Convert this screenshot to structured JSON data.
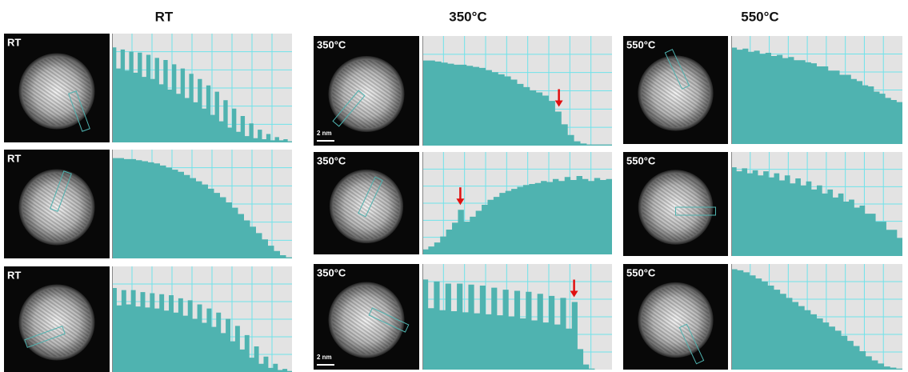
{
  "columns": [
    {
      "title": "RT",
      "rows": [
        {
          "label": "RT",
          "profile": [
            90,
            70,
            88,
            68,
            86,
            66,
            85,
            62,
            83,
            60,
            80,
            55,
            78,
            50,
            74,
            46,
            70,
            42,
            65,
            38,
            60,
            32,
            54,
            26,
            48,
            20,
            40,
            14,
            32,
            10,
            25,
            6,
            18,
            4,
            12,
            3,
            8,
            2,
            5,
            2,
            3,
            1
          ]
        },
        {
          "label": "RT",
          "profile": [
            95,
            95,
            94,
            94,
            93,
            92,
            91,
            90,
            88,
            86,
            84,
            82,
            79,
            76,
            73,
            70,
            66,
            62,
            58,
            53,
            48,
            42,
            36,
            30,
            24,
            18,
            12,
            7,
            3,
            1
          ]
        },
        {
          "label": "RT",
          "profile": [
            82,
            65,
            80,
            66,
            80,
            64,
            78,
            63,
            77,
            62,
            76,
            60,
            75,
            58,
            72,
            55,
            70,
            52,
            66,
            48,
            62,
            44,
            58,
            38,
            52,
            30,
            45,
            22,
            36,
            14,
            25,
            8,
            15,
            4,
            8,
            2,
            3,
            1
          ]
        }
      ]
    },
    {
      "title": "350°C",
      "rows": [
        {
          "label": "350°C",
          "scale_bar": "2 nm",
          "profile": [
            80,
            80,
            79,
            78,
            77,
            76,
            76,
            75,
            74,
            73,
            71,
            69,
            67,
            65,
            62,
            58,
            55,
            52,
            50,
            47,
            42,
            32,
            20,
            10,
            4,
            2,
            1,
            1,
            1,
            1
          ]
        },
        {
          "label": "350°C",
          "profile": [
            5,
            8,
            12,
            18,
            25,
            32,
            45,
            33,
            38,
            44,
            50,
            55,
            58,
            62,
            64,
            66,
            68,
            70,
            71,
            72,
            74,
            73,
            76,
            74,
            78,
            75,
            79,
            76,
            74,
            77,
            75,
            76
          ]
        },
        {
          "label": "350°C",
          "scale_bar": "2 nm",
          "profile": [
            88,
            60,
            86,
            58,
            84,
            57,
            84,
            56,
            83,
            55,
            82,
            54,
            80,
            53,
            78,
            52,
            77,
            50,
            76,
            48,
            74,
            46,
            72,
            44,
            70,
            40,
            66,
            20,
            5,
            1,
            0,
            0,
            0
          ]
        }
      ]
    },
    {
      "title": "550°C",
      "rows": [
        {
          "label": "550°C",
          "profile": [
            92,
            90,
            91,
            88,
            89,
            86,
            87,
            84,
            85,
            82,
            83,
            80,
            80,
            78,
            77,
            74,
            74,
            70,
            70,
            66,
            66,
            62,
            60,
            56,
            55,
            50,
            48,
            44,
            42,
            40
          ]
        },
        {
          "label": "550°C",
          "profile": [
            88,
            84,
            87,
            82,
            85,
            80,
            84,
            78,
            82,
            75,
            80,
            72,
            77,
            70,
            74,
            66,
            70,
            62,
            66,
            58,
            62,
            54,
            56,
            48,
            50,
            42,
            42,
            34,
            34,
            26,
            26,
            18
          ]
        },
        {
          "label": "550°C",
          "profile": [
            98,
            97,
            95,
            92,
            89,
            86,
            82,
            78,
            74,
            70,
            66,
            62,
            58,
            54,
            50,
            46,
            42,
            38,
            33,
            28,
            23,
            18,
            13,
            9,
            6,
            3,
            2,
            1
          ]
        }
      ]
    }
  ]
}
